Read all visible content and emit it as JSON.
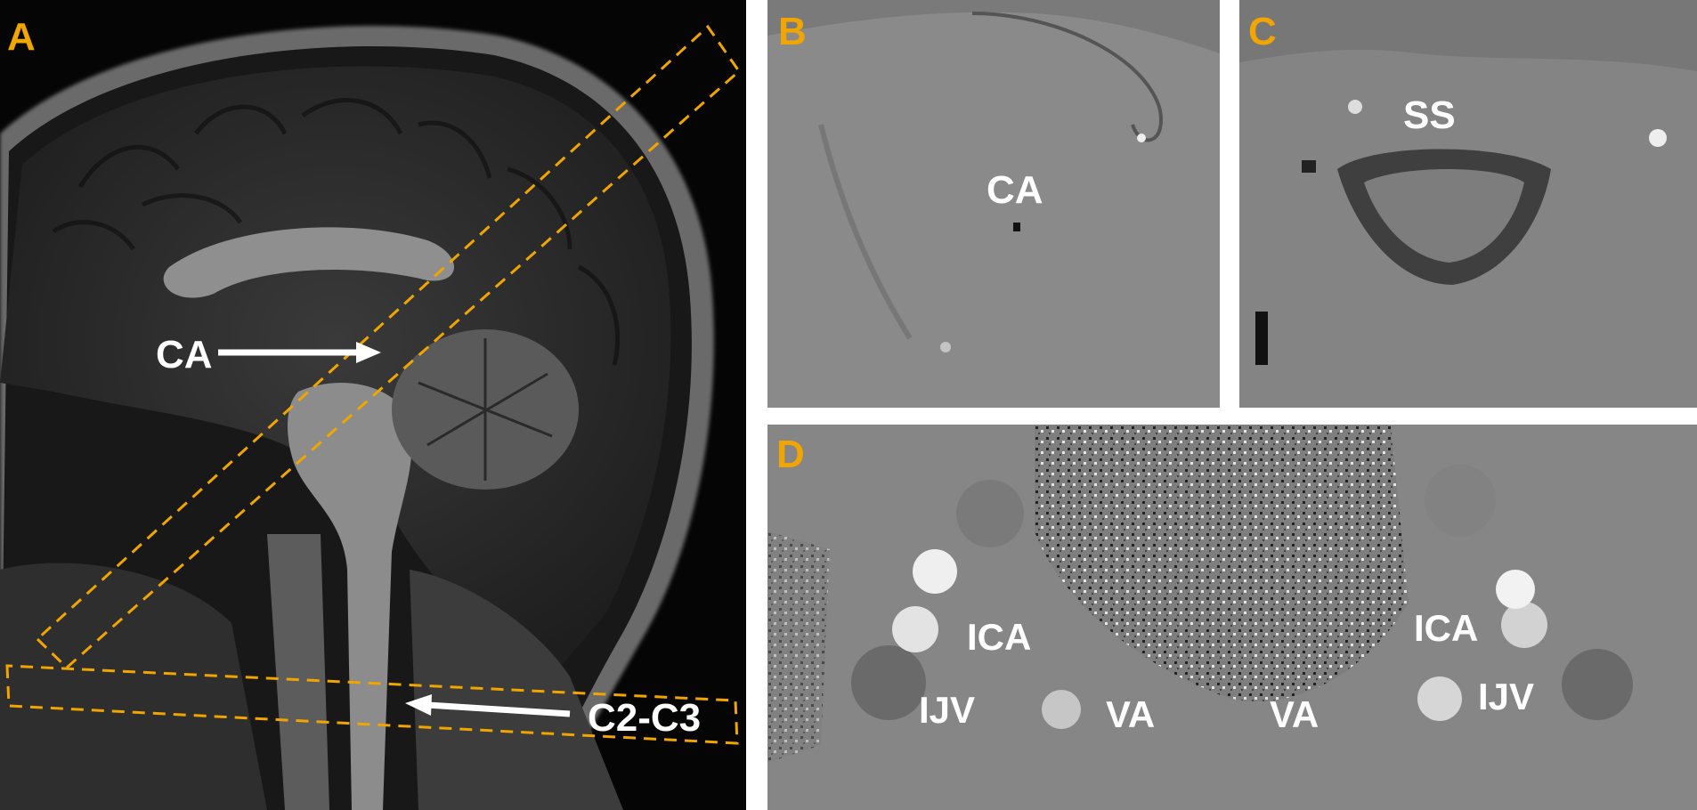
{
  "figure": {
    "panels": [
      {
        "letter": "A",
        "description_label_ca": "CA",
        "description_label_c2c3": "C2-C3"
      },
      {
        "letter": "B",
        "labels": [
          "CA"
        ]
      },
      {
        "letter": "C",
        "labels": [
          "SS"
        ]
      },
      {
        "letter": "D",
        "labels": [
          "ICA",
          "ICA",
          "IJV",
          "IJV",
          "VA",
          "VA"
        ]
      }
    ]
  },
  "colors": {
    "panel_letter": "#f0a500",
    "slice_box": "#f0a500",
    "label_text": "#ffffff",
    "mri_background": "#000000",
    "phase_background": "#8a8a8a"
  }
}
